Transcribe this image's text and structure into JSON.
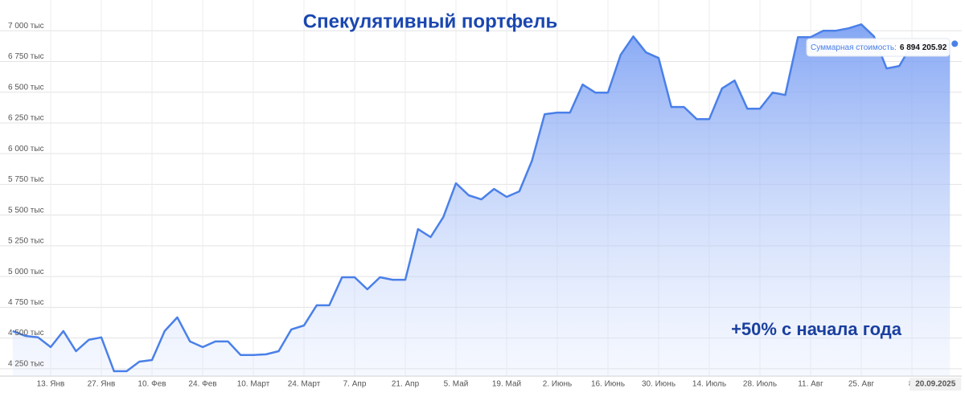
{
  "chart_data": {
    "type": "area",
    "title": "Спекулятивный портфель",
    "annotation": "+50% с начала года",
    "tooltip": {
      "label": "Суммарная стоимость:",
      "value": "6 894 205.92"
    },
    "categories": [
      null,
      null,
      null,
      "13. Янв",
      null,
      null,
      null,
      "27. Янв",
      null,
      null,
      null,
      "10. Фев",
      null,
      null,
      null,
      "24. Фев",
      null,
      null,
      null,
      "10. Март",
      null,
      null,
      null,
      "24. Март",
      null,
      null,
      null,
      "7. Апр",
      null,
      null,
      null,
      "21. Апр",
      null,
      null,
      null,
      "5. Май",
      null,
      null,
      null,
      "19. Май",
      null,
      null,
      null,
      "2. Июнь",
      null,
      null,
      null,
      "16. Июнь",
      null,
      null,
      null,
      "30. Июнь",
      null,
      null,
      null,
      "14. Июль",
      null,
      null,
      null,
      "28. Июль",
      null,
      null,
      null,
      "11. Авг",
      null,
      null,
      null,
      "25. Авг",
      null,
      null,
      null,
      "8.",
      null,
      null,
      "20.09.2025"
    ],
    "series": [
      {
        "name": "Суммарная стоимость",
        "color": "#4a80e8",
        "values": [
          4557,
          4517,
          4505,
          4426,
          4557,
          4393,
          4485,
          4505,
          4230,
          4230,
          4308,
          4321,
          4557,
          4668,
          4472,
          4426,
          4472,
          4472,
          4361,
          4361,
          4367,
          4393,
          4570,
          4602,
          4766,
          4766,
          4994,
          4994,
          4896,
          4994,
          4974,
          4974,
          5386,
          5321,
          5484,
          5759,
          5661,
          5628,
          5713,
          5648,
          5693,
          5942,
          6321,
          6334,
          6334,
          6562,
          6497,
          6497,
          6804,
          6954,
          6824,
          6778,
          6380,
          6380,
          6281,
          6281,
          6530,
          6595,
          6366,
          6366,
          6497,
          6477,
          6948,
          6948,
          7000,
          7000,
          7020,
          7052,
          6954,
          6693,
          6713,
          6889,
          6889,
          6870,
          6894.20592
        ]
      }
    ],
    "ylim": [
      4190,
      7250
    ],
    "yticks": [
      {
        "value": 4250,
        "label": "4 250 тыс"
      },
      {
        "value": 4500,
        "label": "4 500 тыс"
      },
      {
        "value": 4750,
        "label": "4 750 тыс"
      },
      {
        "value": 5000,
        "label": "5 000 тыс"
      },
      {
        "value": 5250,
        "label": "5 250 тыс"
      },
      {
        "value": 5500,
        "label": "5 500 тыс"
      },
      {
        "value": 5750,
        "label": "5 750 тыс"
      },
      {
        "value": 6000,
        "label": "6 000 тыс"
      },
      {
        "value": 6250,
        "label": "6 250 тыс"
      },
      {
        "value": 6500,
        "label": "6 500 тыс"
      },
      {
        "value": 6750,
        "label": "6 750 тыс"
      },
      {
        "value": 7000,
        "label": "7 000 тыс"
      }
    ],
    "grid": true
  }
}
